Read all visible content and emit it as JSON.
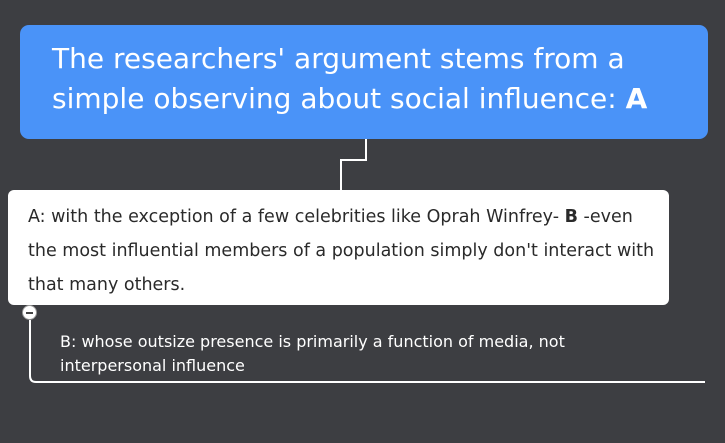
{
  "root": {
    "text": "The researchers' argument stems from a simple observing about social influence: ",
    "marker": "A"
  },
  "child": {
    "text": "A:  with the exception of a few celebrities like Oprah Winfrey- ",
    "marker": "B",
    "text_after": " -even the most influential members of a population simply don't interact with that many others."
  },
  "sub": {
    "text": "B: whose outsize presence is primarily a function of media, not interpersonal influence"
  },
  "colors": {
    "background": "#3d3e42",
    "root_fill": "#4a93f8",
    "child_fill": "#ffffff",
    "connector": "#ffffff"
  },
  "icons": {
    "toggle": "collapse-minus-icon"
  }
}
